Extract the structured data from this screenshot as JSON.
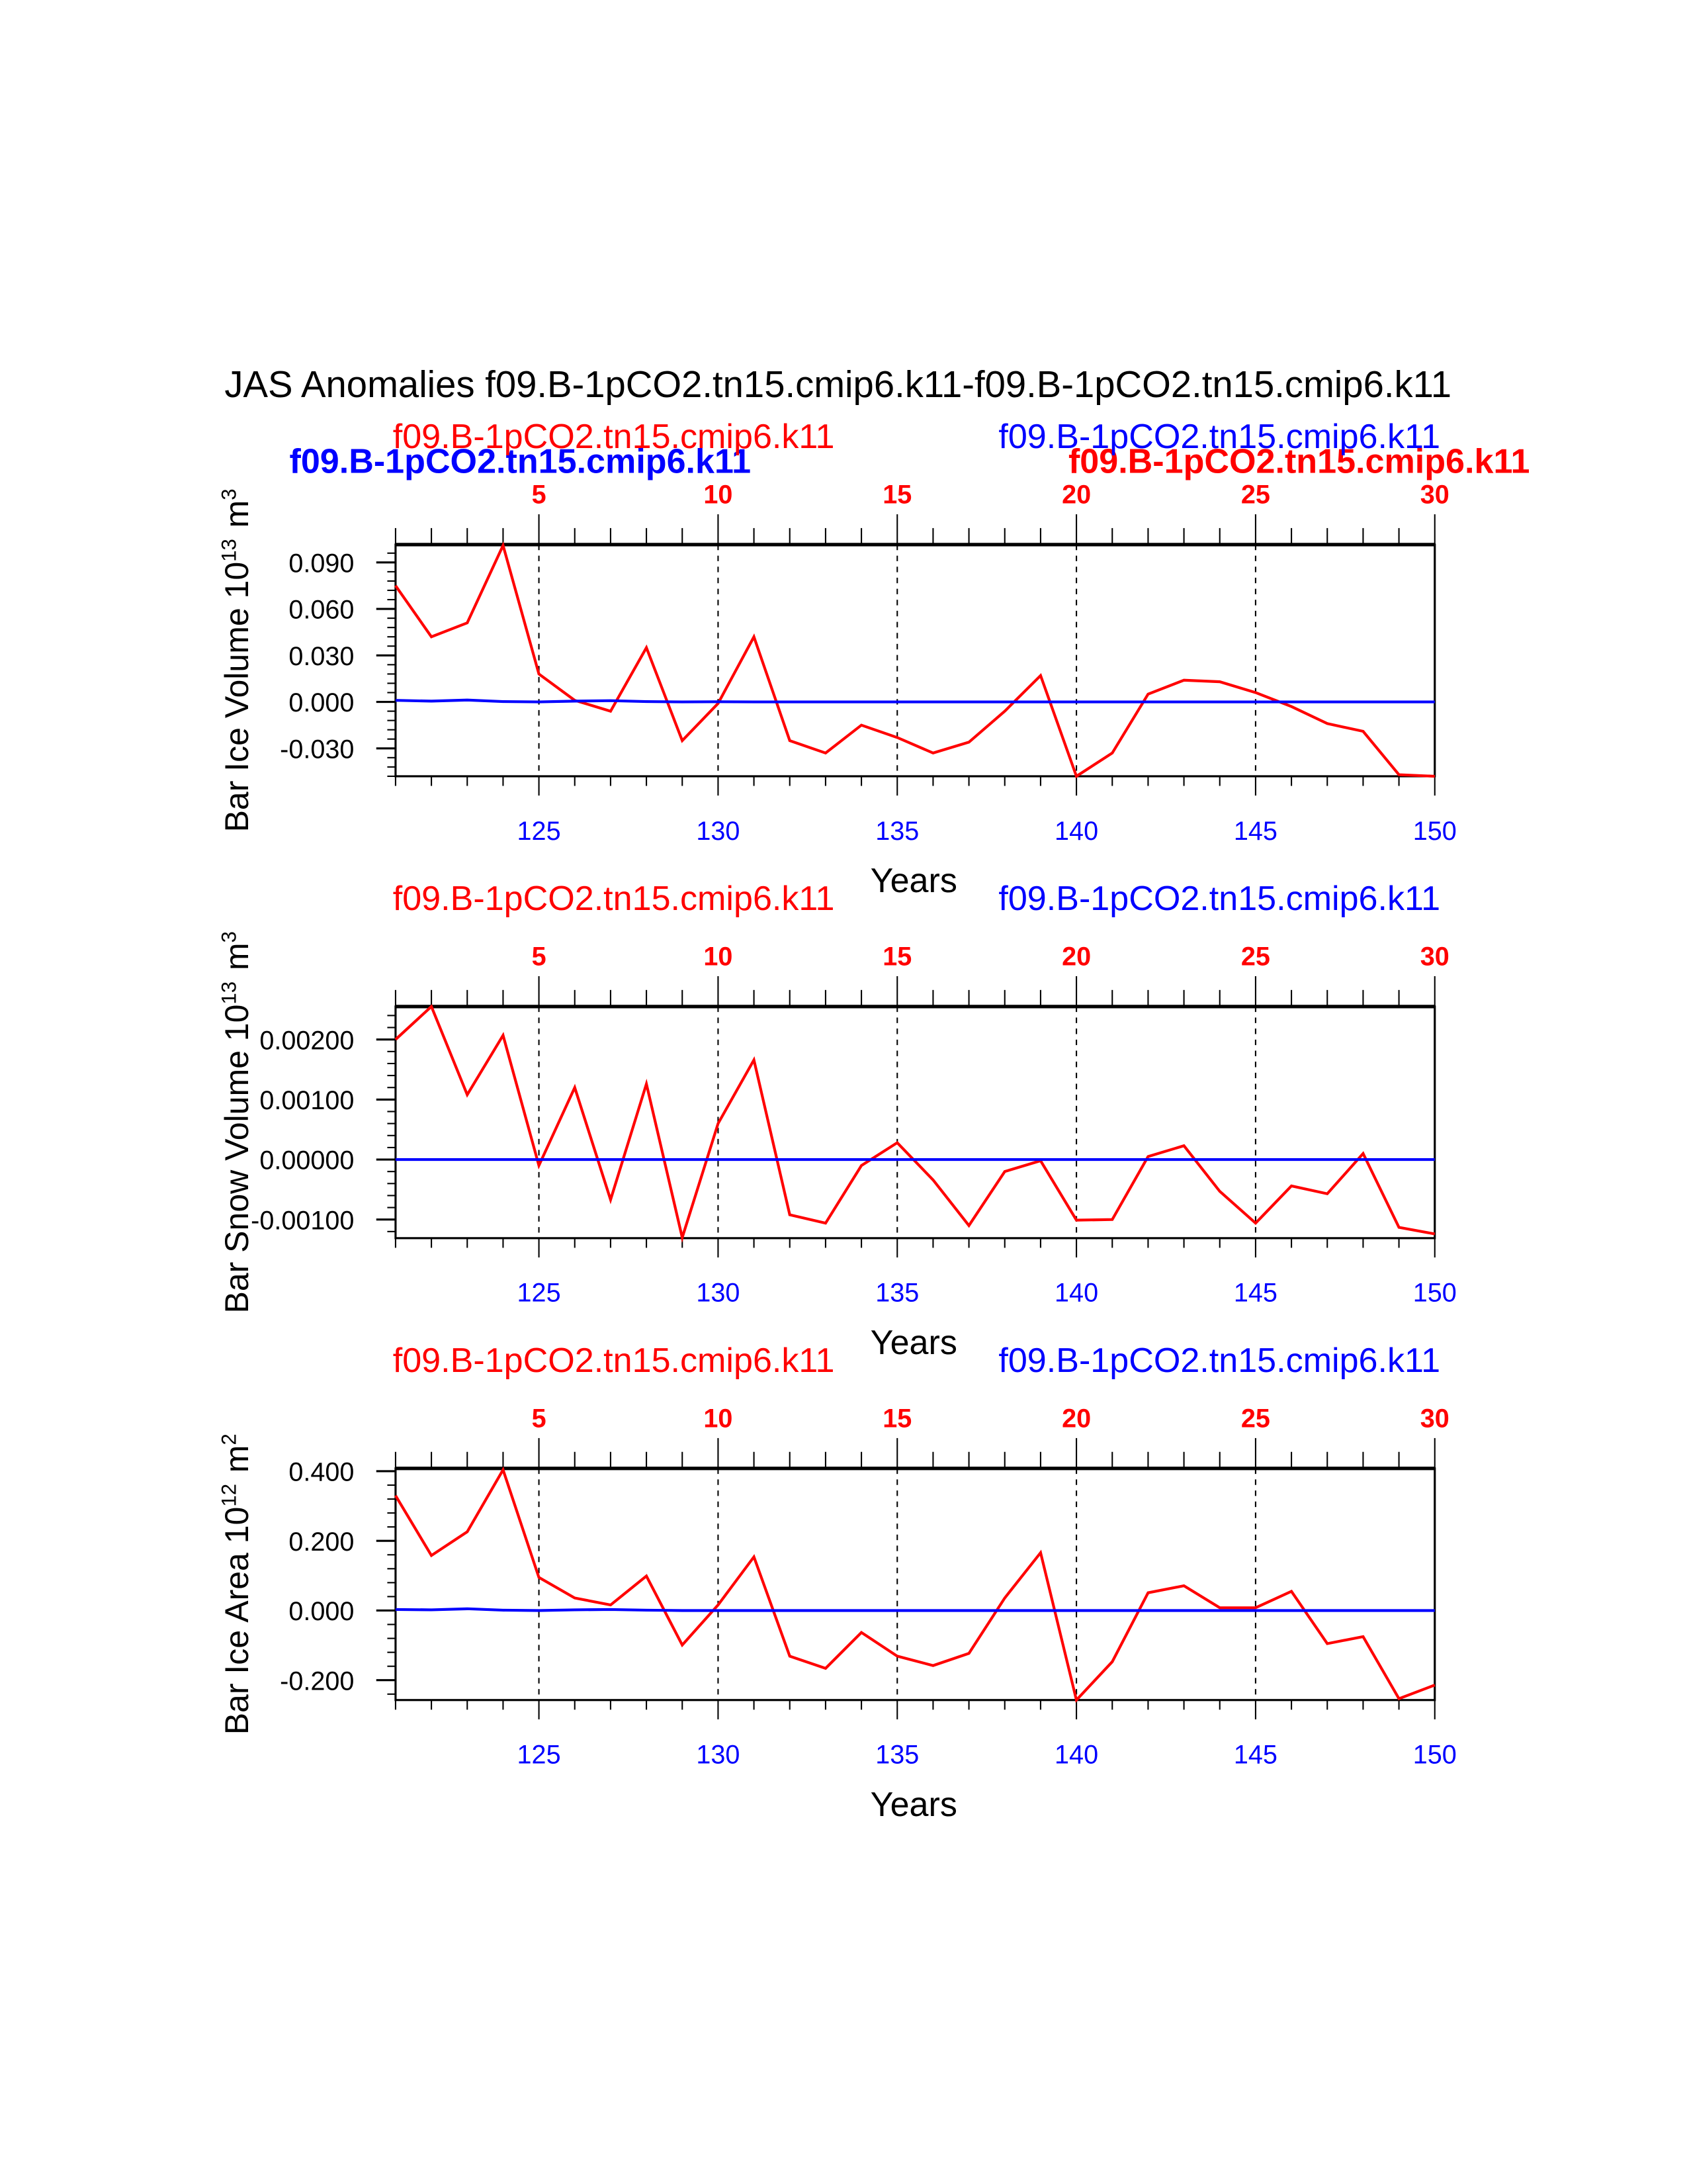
{
  "chart_data": [
    {
      "type": "line",
      "title": "JAS Anomalies f09.B-1pCO2.tn15.cmip6.k11-f09.B-1pCO2.tn15.cmip6.k11",
      "left_label": "f09.B-1pCO2.tn15.cmip6.k11",
      "right_label": "f09.B-1pCO2.tn15.cmip6.k11",
      "left_label_bold": "f09.B-1pCO2.tn15.cmip6.k11",
      "right_label_bold": "f09.B-1pCO2.tn15.cmip6.k11",
      "ylabel": "Bar Ice Volume 10",
      "ylabel_exp": "13",
      "ylabel_unit": "m",
      "ylabel_unit_exp": "3",
      "xlabel": "Years",
      "xlim": [
        121,
        150
      ],
      "ylim": [
        -0.048,
        0.1015
      ],
      "yticks": [
        "0.090",
        "0.060",
        "0.030",
        "0.000",
        "-0.030"
      ],
      "ytick_values": [
        0.09,
        0.06,
        0.03,
        0.0,
        -0.03
      ],
      "xticks_bottom": [
        "125",
        "130",
        "135",
        "140",
        "145",
        "150"
      ],
      "xticks_top": [
        "5",
        "10",
        "15",
        "20",
        "25",
        "30"
      ],
      "x": [
        121,
        122,
        123,
        124,
        125,
        126,
        127,
        128,
        129,
        130,
        131,
        132,
        133,
        134,
        135,
        136,
        137,
        138,
        139,
        140,
        141,
        142,
        143,
        144,
        145,
        146,
        147,
        148,
        149,
        150
      ],
      "series": [
        {
          "name": "red",
          "color": "#ff0000",
          "values": [
            0.075,
            0.042,
            0.051,
            0.101,
            0.018,
            0.001,
            -0.006,
            0.035,
            -0.025,
            -0.001,
            0.042,
            -0.025,
            -0.033,
            -0.015,
            -0.023,
            -0.033,
            -0.026,
            -0.006,
            0.017,
            -0.048,
            -0.033,
            0.005,
            0.014,
            0.013,
            0.006,
            -0.003,
            -0.014,
            -0.019,
            -0.047,
            -0.048
          ]
        },
        {
          "name": "blue",
          "color": "#0000ff",
          "values": [
            0.001,
            0.0005,
            0.0012,
            0.0002,
            0.0,
            0.0005,
            0.0008,
            0.0002,
            0.0,
            0.0001,
            0.0,
            0.0,
            0.0,
            0.0,
            0.0,
            0.0,
            0.0,
            0.0,
            0.0,
            0.0,
            0.0,
            0.0,
            0.0,
            0.0,
            0.0,
            0.0,
            0.0,
            0.0,
            0.0,
            0.0
          ]
        }
      ]
    },
    {
      "type": "line",
      "left_label": "f09.B-1pCO2.tn15.cmip6.k11",
      "right_label": "f09.B-1pCO2.tn15.cmip6.k11",
      "ylabel": "Bar Snow Volume 10",
      "ylabel_exp": "13",
      "ylabel_unit": "m",
      "ylabel_unit_exp": "3",
      "xlabel": "Years",
      "xlim": [
        121,
        150
      ],
      "ylim": [
        -0.00131,
        0.00255
      ],
      "yticks": [
        "0.00200",
        "0.00100",
        "0.00000",
        "-0.00100"
      ],
      "ytick_values": [
        0.002,
        0.001,
        0.0,
        -0.001
      ],
      "xticks_bottom": [
        "125",
        "130",
        "135",
        "140",
        "145",
        "150"
      ],
      "xticks_top": [
        "5",
        "10",
        "15",
        "20",
        "25",
        "30"
      ],
      "x": [
        121,
        122,
        123,
        124,
        125,
        126,
        127,
        128,
        129,
        130,
        131,
        132,
        133,
        134,
        135,
        136,
        137,
        138,
        139,
        140,
        141,
        142,
        143,
        144,
        145,
        146,
        147,
        148,
        149,
        150
      ],
      "series": [
        {
          "name": "red",
          "color": "#ff0000",
          "values": [
            0.002,
            0.00255,
            0.00108,
            0.00207,
            -0.0001,
            0.0012,
            -0.00067,
            0.00126,
            -0.0013,
            0.0006,
            0.00166,
            -0.00092,
            -0.00106,
            -0.0001,
            0.00028,
            -0.00034,
            -0.0011,
            -0.0002,
            -2e-05,
            -0.00101,
            -0.001,
            5e-05,
            0.00023,
            -0.00053,
            -0.00106,
            -0.00044,
            -0.00057,
            0.0001,
            -0.00113,
            -0.00124
          ]
        },
        {
          "name": "blue",
          "color": "#0000ff",
          "values": [
            0,
            0,
            0,
            0,
            0,
            0,
            0,
            0,
            0,
            0,
            0,
            0,
            0,
            0,
            0,
            0,
            0,
            0,
            0,
            0,
            0,
            0,
            0,
            0,
            0,
            0,
            0,
            0,
            0,
            0
          ]
        }
      ]
    },
    {
      "type": "line",
      "left_label": "f09.B-1pCO2.tn15.cmip6.k11",
      "right_label": "f09.B-1pCO2.tn15.cmip6.k11",
      "ylabel": "Bar Ice Area 10",
      "ylabel_exp": "12",
      "ylabel_unit": "m",
      "ylabel_unit_exp": "2",
      "xlabel": "Years",
      "xlim": [
        121,
        150
      ],
      "ylim": [
        -0.257,
        0.408
      ],
      "yticks": [
        "0.400",
        "0.200",
        "0.000",
        "-0.200"
      ],
      "ytick_values": [
        0.4,
        0.2,
        0.0,
        -0.2
      ],
      "xticks_bottom": [
        "125",
        "130",
        "135",
        "140",
        "145",
        "150"
      ],
      "xticks_top": [
        "5",
        "10",
        "15",
        "20",
        "25",
        "30"
      ],
      "x": [
        121,
        122,
        123,
        124,
        125,
        126,
        127,
        128,
        129,
        130,
        131,
        132,
        133,
        134,
        135,
        136,
        137,
        138,
        139,
        140,
        141,
        142,
        143,
        144,
        145,
        146,
        147,
        148,
        149,
        150
      ],
      "series": [
        {
          "name": "red",
          "color": "#ff0000",
          "values": [
            0.33,
            0.158,
            0.226,
            0.404,
            0.095,
            0.036,
            0.016,
            0.099,
            -0.099,
            0.016,
            0.154,
            -0.131,
            -0.166,
            -0.063,
            -0.131,
            -0.158,
            -0.123,
            0.036,
            0.166,
            -0.257,
            -0.147,
            0.051,
            0.071,
            0.008,
            0.008,
            0.055,
            -0.095,
            -0.075,
            -0.253,
            -0.214
          ]
        },
        {
          "name": "blue",
          "color": "#0000ff",
          "values": [
            0.003,
            0.002,
            0.005,
            0.001,
            0.0,
            0.002,
            0.003,
            0.001,
            0,
            0,
            0,
            0,
            0,
            0,
            0,
            0,
            0,
            0,
            0,
            0,
            0,
            0,
            0,
            0,
            0,
            0,
            0,
            0,
            0,
            0
          ]
        }
      ]
    }
  ]
}
